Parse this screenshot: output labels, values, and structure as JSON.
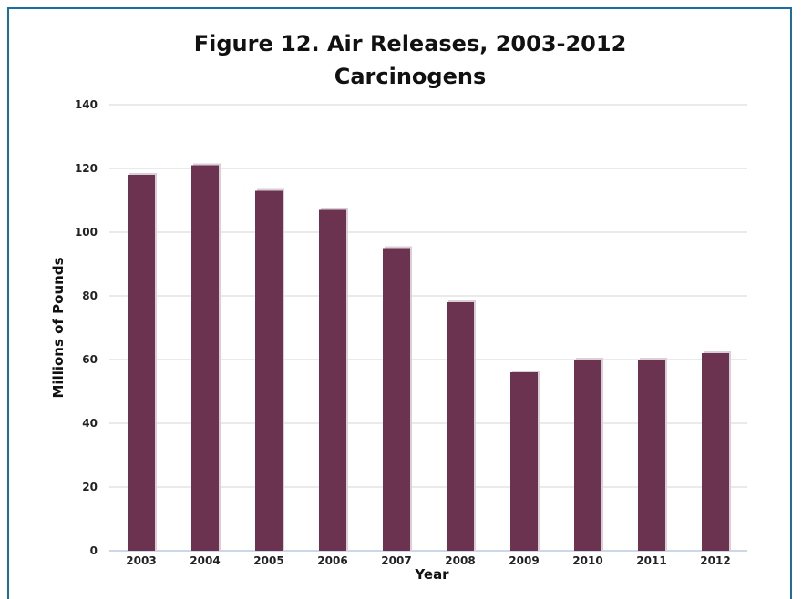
{
  "chart_data": {
    "type": "bar",
    "title": "Figure 12. Air Releases, 2003-2012",
    "subtitle": "Carcinogens",
    "xlabel": "Year",
    "ylabel": "Millions of Pounds",
    "categories": [
      "2003",
      "2004",
      "2005",
      "2006",
      "2007",
      "2008",
      "2009",
      "2010",
      "2011",
      "2012"
    ],
    "values": [
      118,
      121,
      113,
      107,
      95,
      78,
      56,
      60,
      60,
      62
    ],
    "ylim": [
      0,
      140
    ],
    "yticks": [
      "0",
      "20",
      "40",
      "60",
      "80",
      "100",
      "120",
      "140"
    ],
    "grid": true,
    "legend": "none",
    "colors": {
      "bar": "#6b3350",
      "bar_shadow": "#d9cfd5",
      "grid": "#d4d4d4",
      "frame": "#1a6fa0",
      "axis": "#b8cce0"
    }
  }
}
